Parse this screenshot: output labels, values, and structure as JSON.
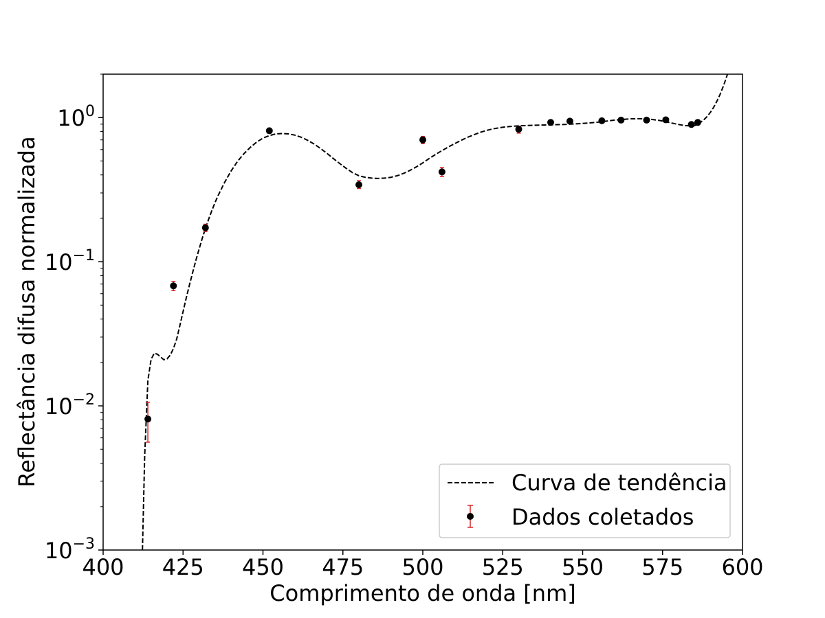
{
  "chart_data": {
    "type": "scatter",
    "title": "",
    "xlabel": "Comprimento de onda [nm]",
    "ylabel": "Reflectância difusa normalizada",
    "xlim": [
      400,
      600
    ],
    "ylim": [
      0.001,
      2.0
    ],
    "yscale": "log",
    "x_ticks": [
      400,
      425,
      450,
      475,
      500,
      525,
      550,
      575,
      600
    ],
    "y_ticks": [
      {
        "value": 0.001,
        "base": "10",
        "exp": "−3"
      },
      {
        "value": 0.01,
        "base": "10",
        "exp": "−2"
      },
      {
        "value": 0.1,
        "base": "10",
        "exp": "−1"
      },
      {
        "value": 1,
        "base": "10",
        "exp": "0"
      }
    ],
    "grid": false,
    "legend_position": "lower-right",
    "series": [
      {
        "name": "Curva de tendência",
        "style": "dashed-line",
        "color": "#000000",
        "points": [
          [
            412.3,
            0.001
          ],
          [
            413.0,
            0.0045
          ],
          [
            414.0,
            0.015
          ],
          [
            415.0,
            0.021
          ],
          [
            416.0,
            0.0232
          ],
          [
            417.0,
            0.0228
          ],
          [
            418.0,
            0.0218
          ],
          [
            419.0,
            0.0209
          ],
          [
            420.0,
            0.0212
          ],
          [
            421.0,
            0.0225
          ],
          [
            422.0,
            0.025
          ],
          [
            423.0,
            0.029
          ],
          [
            424.0,
            0.036
          ],
          [
            425.0,
            0.045
          ],
          [
            426.0,
            0.056
          ],
          [
            427.0,
            0.069
          ],
          [
            428.0,
            0.084
          ],
          [
            429.0,
            0.102
          ],
          [
            430.0,
            0.122
          ],
          [
            431.0,
            0.145
          ],
          [
            432.0,
            0.17
          ],
          [
            433.0,
            0.197
          ],
          [
            434.0,
            0.226
          ],
          [
            435.0,
            0.257
          ],
          [
            436.0,
            0.289
          ],
          [
            438.0,
            0.355
          ],
          [
            440.0,
            0.425
          ],
          [
            442.0,
            0.495
          ],
          [
            444.0,
            0.56
          ],
          [
            446.0,
            0.62
          ],
          [
            448.0,
            0.675
          ],
          [
            450.0,
            0.72
          ],
          [
            452.0,
            0.75
          ],
          [
            454.0,
            0.77
          ],
          [
            456.0,
            0.775
          ],
          [
            458.0,
            0.77
          ],
          [
            460.0,
            0.755
          ],
          [
            462.0,
            0.73
          ],
          [
            464.0,
            0.695
          ],
          [
            466.0,
            0.655
          ],
          [
            468.0,
            0.61
          ],
          [
            470.0,
            0.565
          ],
          [
            472.0,
            0.52
          ],
          [
            474.0,
            0.48
          ],
          [
            476.0,
            0.445
          ],
          [
            478.0,
            0.415
          ],
          [
            480.0,
            0.395
          ],
          [
            482.0,
            0.385
          ],
          [
            484.0,
            0.38
          ],
          [
            486.0,
            0.378
          ],
          [
            488.0,
            0.38
          ],
          [
            490.0,
            0.385
          ],
          [
            492.0,
            0.395
          ],
          [
            494.0,
            0.41
          ],
          [
            496.0,
            0.43
          ],
          [
            498.0,
            0.455
          ],
          [
            500.0,
            0.485
          ],
          [
            502.0,
            0.52
          ],
          [
            504.0,
            0.555
          ],
          [
            506.0,
            0.59
          ],
          [
            508.0,
            0.625
          ],
          [
            510.0,
            0.66
          ],
          [
            512.0,
            0.695
          ],
          [
            514.0,
            0.73
          ],
          [
            516.0,
            0.76
          ],
          [
            518.0,
            0.79
          ],
          [
            520.0,
            0.815
          ],
          [
            522.0,
            0.835
          ],
          [
            524.0,
            0.85
          ],
          [
            526.0,
            0.862
          ],
          [
            528.0,
            0.87
          ],
          [
            530.0,
            0.876
          ],
          [
            535.0,
            0.885
          ],
          [
            540.0,
            0.89
          ],
          [
            545.0,
            0.897
          ],
          [
            550.0,
            0.91
          ],
          [
            555.0,
            0.93
          ],
          [
            560.0,
            0.96
          ],
          [
            565.0,
            0.98
          ],
          [
            568.0,
            0.982
          ],
          [
            571.0,
            0.975
          ],
          [
            574.0,
            0.955
          ],
          [
            577.0,
            0.925
          ],
          [
            580.0,
            0.895
          ],
          [
            582.0,
            0.88
          ],
          [
            584.0,
            0.875
          ],
          [
            585.0,
            0.88
          ],
          [
            586.0,
            0.9
          ],
          [
            587.0,
            0.93
          ],
          [
            588.0,
            0.97
          ],
          [
            589.0,
            1.02
          ],
          [
            590.0,
            1.09
          ],
          [
            591.0,
            1.18
          ],
          [
            592.0,
            1.3
          ],
          [
            593.0,
            1.45
          ],
          [
            594.0,
            1.65
          ],
          [
            594.8,
            1.85
          ],
          [
            595.3,
            2.0
          ]
        ]
      },
      {
        "name": "Dados coletados",
        "style": "errorbar-points",
        "marker_color": "#000000",
        "errorbar_color": "#d62728",
        "points": [
          {
            "x": 414,
            "y": 0.0081,
            "yerr_low": 0.0056,
            "yerr_high": 0.0106
          },
          {
            "x": 422,
            "y": 0.068,
            "yerr_low": 0.063,
            "yerr_high": 0.073
          },
          {
            "x": 432,
            "y": 0.172,
            "yerr_low": 0.162,
            "yerr_high": 0.182
          },
          {
            "x": 452,
            "y": 0.81,
            "yerr_low": 0.78,
            "yerr_high": 0.84
          },
          {
            "x": 480,
            "y": 0.342,
            "yerr_low": 0.322,
            "yerr_high": 0.365
          },
          {
            "x": 500,
            "y": 0.7,
            "yerr_low": 0.66,
            "yerr_high": 0.74
          },
          {
            "x": 506,
            "y": 0.42,
            "yerr_low": 0.39,
            "yerr_high": 0.45
          },
          {
            "x": 530,
            "y": 0.83,
            "yerr_low": 0.78,
            "yerr_high": 0.87
          },
          {
            "x": 540,
            "y": 0.925,
            "yerr_low": 0.91,
            "yerr_high": 0.94
          },
          {
            "x": 546,
            "y": 0.945,
            "yerr_low": 0.93,
            "yerr_high": 0.96
          },
          {
            "x": 556,
            "y": 0.95,
            "yerr_low": 0.935,
            "yerr_high": 0.965
          },
          {
            "x": 562,
            "y": 0.96,
            "yerr_low": 0.945,
            "yerr_high": 0.975
          },
          {
            "x": 570,
            "y": 0.96,
            "yerr_low": 0.945,
            "yerr_high": 0.975
          },
          {
            "x": 576,
            "y": 0.965,
            "yerr_low": 0.95,
            "yerr_high": 0.98
          },
          {
            "x": 584,
            "y": 0.895,
            "yerr_low": 0.87,
            "yerr_high": 0.92
          },
          {
            "x": 586,
            "y": 0.925,
            "yerr_low": 0.905,
            "yerr_high": 0.945
          }
        ]
      }
    ]
  }
}
